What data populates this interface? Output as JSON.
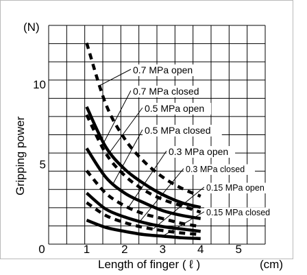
{
  "chart_data": {
    "type": "line",
    "title": "",
    "xlabel": "Length of finger ( ℓ )",
    "ylabel": "Gripping power",
    "x_unit": "(cm)",
    "y_unit": "(N)",
    "xlim": [
      0,
      5.7
    ],
    "ylim": [
      0,
      13.7
    ],
    "xticks": [
      0,
      1,
      2,
      3,
      4,
      5
    ],
    "yticks": [
      5,
      10
    ],
    "grid": "on",
    "legend": "callout labels to the right of curves",
    "series": [
      {
        "name": "0.7 MPa open",
        "style": "dashed",
        "x": [
          1,
          1.5,
          2,
          2.5,
          3,
          3.5,
          4
        ],
        "y": [
          12.6,
          8.8,
          6.6,
          5.2,
          4.2,
          3.5,
          3.0
        ]
      },
      {
        "name": "0.7 MPa closed",
        "style": "solid",
        "x": [
          1,
          1.5,
          2,
          2.5,
          3,
          3.5,
          4
        ],
        "y": [
          8.6,
          6.1,
          4.7,
          3.8,
          3.1,
          2.6,
          2.3
        ]
      },
      {
        "name": "0.5 MPa open",
        "style": "dashed",
        "x": [
          1,
          1.5,
          2,
          2.5,
          3,
          3.5,
          4
        ],
        "y": [
          8.1,
          5.7,
          4.3,
          3.4,
          2.8,
          2.4,
          2.0
        ]
      },
      {
        "name": "0.5 MPa closed",
        "style": "solid",
        "x": [
          1,
          1.5,
          2,
          2.5,
          3,
          3.5,
          4
        ],
        "y": [
          6.0,
          4.2,
          3.2,
          2.6,
          2.1,
          1.8,
          1.6
        ]
      },
      {
        "name": "0.3 MPa open",
        "style": "dashed",
        "x": [
          1,
          1.5,
          2,
          2.5,
          3,
          3.5,
          4
        ],
        "y": [
          4.6,
          3.2,
          2.4,
          1.9,
          1.6,
          1.3,
          1.1
        ]
      },
      {
        "name": "0.3 MPa closed",
        "style": "solid",
        "x": [
          1,
          1.5,
          2,
          2.5,
          3,
          3.5,
          4
        ],
        "y": [
          3.2,
          2.2,
          1.7,
          1.35,
          1.1,
          0.95,
          0.8
        ]
      },
      {
        "name": "0.15 MPa open",
        "style": "dashed",
        "x": [
          1,
          1.5,
          2,
          2.5,
          3,
          3.5,
          4
        ],
        "y": [
          2.6,
          1.8,
          1.35,
          1.05,
          0.85,
          0.7,
          0.6
        ]
      },
      {
        "name": "0.15 MPa closed",
        "style": "solid",
        "x": [
          1,
          1.5,
          2,
          2.5,
          3,
          3.5,
          4
        ],
        "y": [
          1.5,
          1.05,
          0.8,
          0.6,
          0.5,
          0.4,
          0.35
        ]
      }
    ]
  },
  "colors": {
    "line": "#000000",
    "background": "#ffffff",
    "frame": "#b9b9b9"
  }
}
